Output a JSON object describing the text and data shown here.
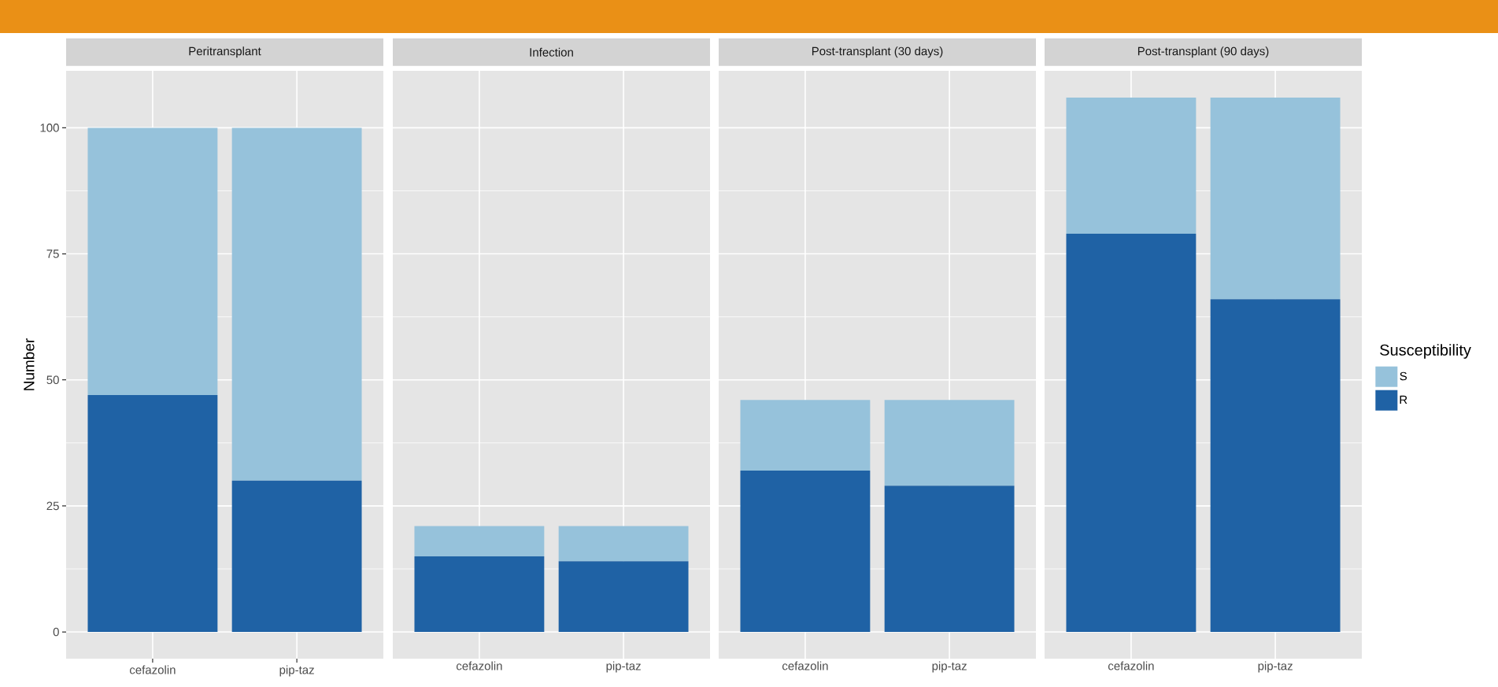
{
  "chart_data": [
    {
      "type": "bar",
      "title": "Peritransplant",
      "ylabel": "Number",
      "categories": [
        "cefazolin",
        "pip-taz"
      ],
      "stacked": true,
      "grid": true,
      "ylim": [
        -5.3,
        111.3
      ],
      "yticks": [
        0,
        25,
        50,
        75,
        100
      ],
      "series": [
        {
          "color": "#1f62a5",
          "values": [
            47,
            30
          ]
        },
        {
          "color": "#96c2db",
          "values": [
            53,
            70
          ]
        }
      ]
    },
    {
      "type": "bar",
      "title": "Infection",
      "categories": [
        "cefazolin",
        "pip-taz"
      ],
      "stacked": true,
      "grid": true,
      "ylim": [
        -5.3,
        111.3
      ],
      "yticks": [
        0,
        25,
        50,
        75,
        100
      ],
      "tick_labels": "x",
      "series": [
        {
          "color": "#1f62a5",
          "values": [
            15,
            14
          ]
        },
        {
          "color": "#96c2db",
          "values": [
            6,
            7
          ]
        }
      ]
    },
    {
      "type": "bar",
      "title": "Post-transplant (30 days)",
      "categories": [
        "cefazolin",
        "pip-taz"
      ],
      "stacked": true,
      "grid": true,
      "ylim": [
        -5.3,
        111.3
      ],
      "yticks": [
        0,
        25,
        50,
        75,
        100
      ],
      "tick_labels": "x",
      "series": [
        {
          "color": "#1f62a5",
          "values": [
            32,
            29
          ]
        },
        {
          "color": "#96c2db",
          "values": [
            14,
            17
          ]
        }
      ]
    },
    {
      "type": "bar",
      "title": "Post-transplant (90 days)",
      "categories": [
        "cefazolin",
        "pip-taz"
      ],
      "stacked": true,
      "grid": true,
      "ylim": [
        -5.3,
        111.3
      ],
      "yticks": [
        0,
        25,
        50,
        75,
        100
      ],
      "tick_labels": "x",
      "legend": "right",
      "legend_title": "Susceptibility",
      "series": [
        {
          "name": "R",
          "color": "#1f62a5",
          "values": [
            79,
            66
          ]
        },
        {
          "name": "S",
          "color": "#96c2db",
          "values": [
            27,
            40
          ]
        }
      ]
    }
  ]
}
